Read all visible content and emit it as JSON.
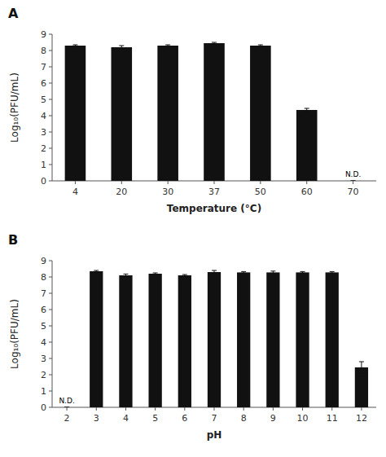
{
  "chart_data": [
    {
      "type": "bar",
      "title": "A",
      "categories": [
        "4",
        "20",
        "30",
        "37",
        "50",
        "60",
        "70"
      ],
      "values": [
        8.3,
        8.2,
        8.3,
        8.45,
        8.3,
        4.35,
        0
      ],
      "errors": [
        0.05,
        0.1,
        0.05,
        0.05,
        0.05,
        0.1,
        0
      ],
      "color": "#111111",
      "x_label": "Temperature (°C)",
      "y_label": "Log₁₀(PFU/mL)",
      "ylim": [
        0,
        9
      ],
      "yticks": [
        0,
        1,
        2,
        3,
        4,
        5,
        6,
        7,
        8,
        9
      ],
      "annotations": [
        {
          "text": "N.D.",
          "x": "70",
          "y": 0.15
        }
      ]
    },
    {
      "type": "bar",
      "title": "B",
      "categories": [
        "2",
        "3",
        "4",
        "5",
        "6",
        "7",
        "8",
        "9",
        "10",
        "11",
        "12"
      ],
      "values": [
        0,
        8.35,
        8.1,
        8.2,
        8.1,
        8.3,
        8.28,
        8.28,
        8.28,
        8.28,
        2.45
      ],
      "errors": [
        0,
        0.05,
        0.08,
        0.05,
        0.05,
        0.1,
        0.05,
        0.08,
        0.05,
        0.05,
        0.35
      ],
      "color": "#111111",
      "x_label": "pH",
      "y_label": "Log₁₀(PFU/mL)",
      "ylim": [
        0,
        9
      ],
      "yticks": [
        0,
        1,
        2,
        3,
        4,
        5,
        6,
        7,
        8,
        9
      ],
      "annotations": [
        {
          "text": "N.D.",
          "x": "2",
          "y": 0.15
        }
      ]
    }
  ]
}
